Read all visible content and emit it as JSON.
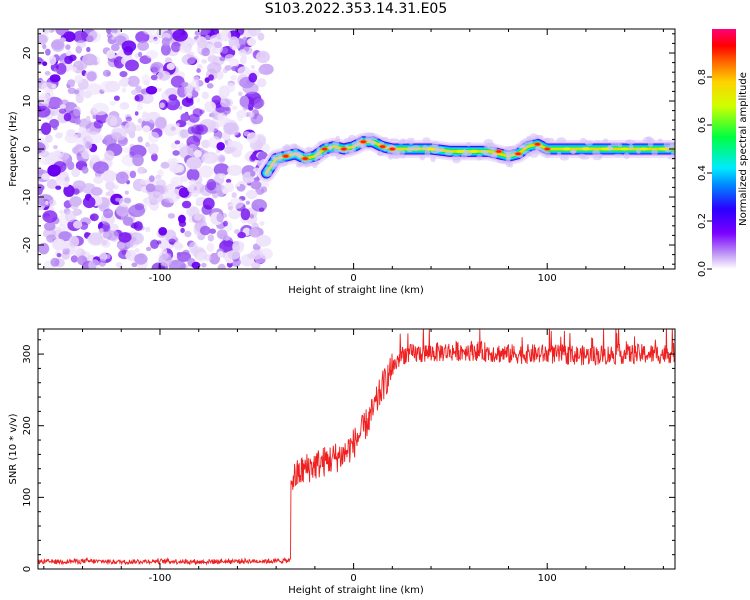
{
  "title": "S103.2022.353.14.31.E05",
  "chart_data": [
    {
      "type": "heatmap",
      "xlabel": "Height of straight line (km)",
      "ylabel": "Frequency (Hz)",
      "xlim": [
        -163,
        166
      ],
      "ylim": [
        -25,
        25
      ],
      "xticks": [
        -100,
        0,
        100
      ],
      "yticks": [
        -20,
        -10,
        0,
        10,
        20
      ],
      "colorbar": {
        "label": "Normalized spectral amplitude",
        "ticks": [
          0.0,
          0.2,
          0.4,
          0.6,
          0.8
        ],
        "range": [
          0,
          1
        ]
      },
      "noise_region_x": [
        -163,
        -45
      ],
      "ridge": {
        "x": [
          -45,
          -40,
          -35,
          -30,
          -25,
          -20,
          -15,
          -10,
          -5,
          0,
          5,
          10,
          15,
          20,
          25,
          30,
          40,
          50,
          60,
          70,
          75,
          80,
          85,
          90,
          95,
          100,
          110,
          120,
          130,
          140,
          150,
          160,
          166
        ],
        "freq": [
          -5,
          -2,
          -1.5,
          -1,
          -2,
          -1.5,
          0,
          0.5,
          0,
          0.5,
          1.5,
          1.5,
          0.5,
          0,
          0,
          0,
          0,
          -0.5,
          -0.5,
          -0.5,
          -1,
          -1.5,
          -1,
          0.5,
          1,
          0,
          0,
          0,
          0,
          0,
          0,
          0,
          0
        ]
      }
    },
    {
      "type": "line",
      "xlabel": "Height of straight line (km)",
      "ylabel": "SNR (10 * v/v)",
      "xlim": [
        -163,
        166
      ],
      "ylim": [
        0,
        335
      ],
      "xticks": [
        -100,
        0,
        100
      ],
      "yticks": [
        0,
        100,
        200,
        300
      ],
      "color": "#ee2020",
      "series": [
        {
          "x": [
            -163,
            -140,
            -120,
            -100,
            -80,
            -60,
            -40,
            -33,
            -32,
            -25,
            -15,
            -5,
            0,
            5,
            10,
            15,
            20,
            25,
            30,
            40,
            60,
            80,
            100,
            120,
            140,
            160,
            166
          ],
          "values": [
            10,
            11,
            10,
            11,
            10,
            11,
            11,
            12,
            125,
            140,
            150,
            160,
            175,
            195,
            220,
            255,
            280,
            300,
            300,
            302,
            305,
            300,
            300,
            298,
            300,
            300,
            302
          ]
        }
      ]
    }
  ]
}
